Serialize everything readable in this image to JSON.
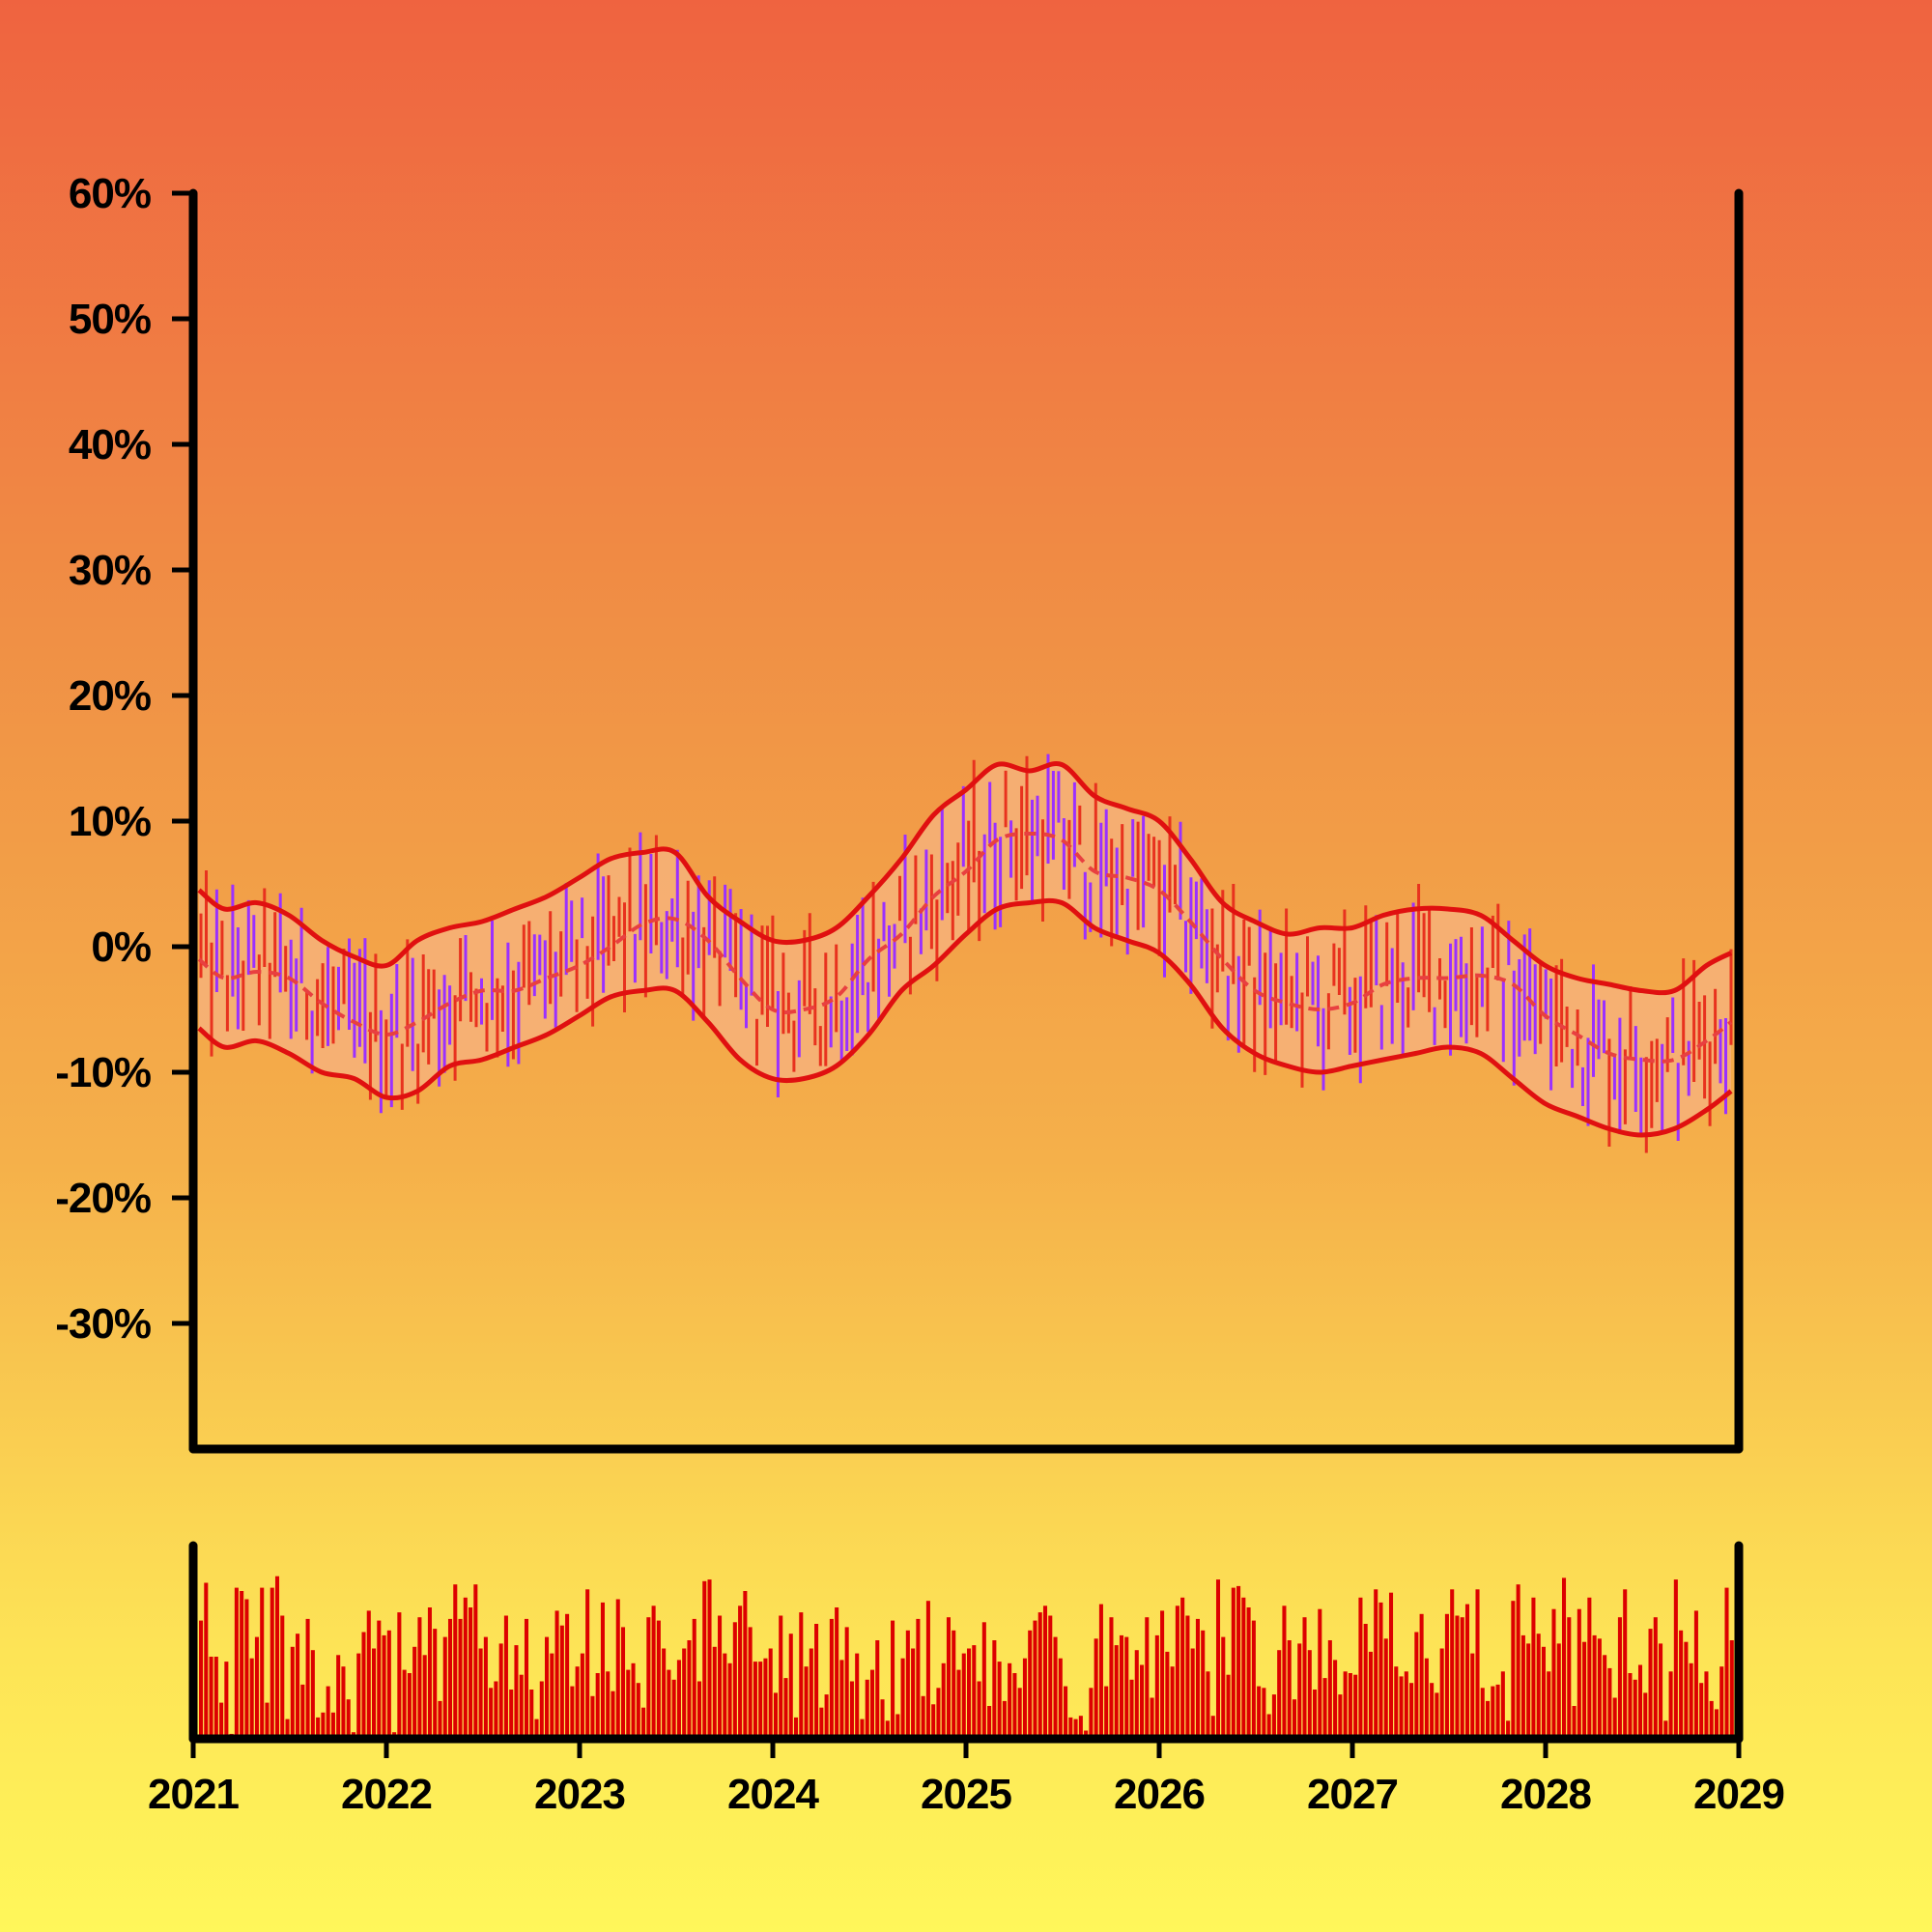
{
  "chart_data": {
    "type": "ohlc",
    "title": "",
    "xlabel": "",
    "ylabel": "",
    "x_range": [
      "2021-01-01",
      "2029-01-01"
    ],
    "x_ticks": [
      "2021",
      "2022",
      "2023",
      "2024",
      "2025",
      "2026",
      "2027",
      "2028",
      "2029"
    ],
    "ylim": [
      -40,
      60
    ],
    "y_ticks": [
      "60%",
      "50%",
      "40%",
      "30%",
      "20%",
      "10%",
      "0%",
      "-10%",
      "-20%",
      "-30%"
    ],
    "y_tick_values": [
      60,
      50,
      40,
      30,
      20,
      10,
      0,
      -10,
      -20,
      -30
    ],
    "grid": false,
    "colors": {
      "up": "#e8321e",
      "down": "#9b30ff",
      "band_line": "#e01010",
      "band_fill": "#f6b27a",
      "middle_line": "#e84040",
      "volume": "#dd0000",
      "axis": "#000000"
    },
    "bands": {
      "description": "moving average with upper/lower envelope",
      "dates": [
        "2021-01",
        "2021-03",
        "2021-05",
        "2021-07",
        "2021-09",
        "2021-11",
        "2022-01",
        "2022-03",
        "2022-05",
        "2022-07",
        "2022-09",
        "2022-11",
        "2023-01",
        "2023-03",
        "2023-05",
        "2023-07",
        "2023-09",
        "2023-11",
        "2024-01",
        "2024-03",
        "2024-05",
        "2024-07",
        "2024-09",
        "2024-11",
        "2025-01",
        "2025-03",
        "2025-05",
        "2025-07",
        "2025-09",
        "2025-11",
        "2026-01",
        "2026-03",
        "2026-05",
        "2026-07",
        "2026-09",
        "2026-11",
        "2027-01",
        "2027-03",
        "2027-05",
        "2027-07",
        "2027-09",
        "2027-11",
        "2028-01",
        "2028-03",
        "2028-05",
        "2028-07",
        "2028-09",
        "2028-11",
        "2029-01"
      ],
      "middle": [
        -1.0,
        -2.5,
        -2.0,
        -2.5,
        -4.5,
        -6.0,
        -7.0,
        -6.0,
        -4.5,
        -3.5,
        -3.5,
        -2.5,
        -1.5,
        0,
        1.8,
        2.2,
        0.5,
        -2.5,
        -5.0,
        -5.0,
        -4.0,
        -1.0,
        1.0,
        4.0,
        6.0,
        8.5,
        9.0,
        8.5,
        6.0,
        5.5,
        4.5,
        2.0,
        -1.0,
        -3.5,
        -4.5,
        -5.0,
        -4.5,
        -3.0,
        -2.5,
        -2.5,
        -2.3,
        -3.0,
        -5.5,
        -7.0,
        -8.5,
        -9.0,
        -9.0,
        -7.5,
        -6.0
      ],
      "upper": [
        4.5,
        3.0,
        3.5,
        2.5,
        0.5,
        -0.8,
        -1.5,
        0.5,
        1.5,
        2.0,
        3.0,
        4.0,
        5.5,
        7.0,
        7.5,
        7.5,
        4.0,
        2.0,
        0.5,
        0.5,
        1.5,
        4.0,
        7.0,
        10.5,
        12.5,
        14.5,
        14.0,
        14.5,
        12.0,
        11.0,
        10.0,
        7.0,
        3.5,
        2.0,
        1.0,
        1.5,
        1.5,
        2.5,
        3.0,
        3.0,
        2.5,
        0.5,
        -1.5,
        -2.5,
        -3.0,
        -3.5,
        -3.5,
        -1.5,
        -0.5
      ],
      "lower": [
        -6.5,
        -8.0,
        -7.5,
        -8.5,
        -10.0,
        -10.5,
        -12.0,
        -11.5,
        -9.5,
        -9.0,
        -8.0,
        -7.0,
        -5.5,
        -4.0,
        -3.5,
        -3.5,
        -6.0,
        -9.0,
        -10.5,
        -10.5,
        -9.5,
        -7.0,
        -3.5,
        -1.5,
        1.0,
        3.0,
        3.5,
        3.5,
        1.5,
        0.5,
        -0.5,
        -3.0,
        -6.5,
        -8.5,
        -9.5,
        -10.0,
        -9.5,
        -9.0,
        -8.5,
        -8.0,
        -8.5,
        -10.5,
        -12.5,
        -13.5,
        -14.5,
        -15.0,
        -14.5,
        -13.0,
        -11.5
      ]
    },
    "ohlc_note": "approximately 290 weekly OHLC bars (candlestick wicks) fluctuating within the band, colored up/down",
    "volume": {
      "note": "volume bars in lower panel, one per period, relative heights 0-1",
      "values": [
        0.72,
        0.95,
        0.5,
        0.5,
        0.22,
        0.47,
        0.03,
        0.92,
        0.9,
        0.85,
        0.49,
        0.62,
        0.92,
        0.22,
        0.92,
        0.99,
        0.75,
        0.12,
        0.56,
        0.64,
        0.33,
        0.73,
        0.54,
        0.13,
        0.16,
        0.32,
        0.16,
        0.51,
        0.44,
        0.24,
        0.04,
        0.52,
        0.65,
        0.78,
        0.55,
        0.72,
        0.63,
        0.66,
        0.04,
        0.77,
        0.42,
        0.4,
        0.56,
        0.74,
        0.51,
        0.8,
        0.67,
        0.23,
        0.62,
        0.73,
        0.94,
        0.73,
        0.86,
        0.8,
        0.94,
        0.55,
        0.62,
        0.31,
        0.35,
        0.58,
        0.75,
        0.3,
        0.57,
        0.39,
        0.73,
        0.3,
        0.12,
        0.35,
        0.62,
        0.52,
        0.78,
        0.69,
        0.76,
        0.32,
        0.44,
        0.52,
        0.91,
        0.26,
        0.4,
        0.83,
        0.41,
        0.29,
        0.85,
        0.68,
        0.42,
        0.46,
        0.34,
        0.19,
        0.74,
        0.81,
        0.72,
        0.55,
        0.42,
        0.36,
        0.48,
        0.55,
        0.6,
        0.73,
        0.35,
        0.96,
        0.97,
        0.56,
        0.75,
        0.52,
        0.46,
        0.71,
        0.81,
        0.9,
        0.68,
        0.47,
        0.47,
        0.49,
        0.55,
        0.28,
        0.75,
        0.37,
        0.64,
        0.13,
        0.77,
        0.44,
        0.55,
        0.7,
        0.19,
        0.27,
        0.73,
        0.8,
        0.48,
        0.68,
        0.35,
        0.52,
        0.12,
        0.36,
        0.42,
        0.6,
        0.24,
        0.11,
        0.72,
        0.15,
        0.49,
        0.66,
        0.55,
        0.73,
        0.26,
        0.84,
        0.21,
        0.31,
        0.46,
        0.74,
        0.66,
        0.42,
        0.52,
        0.55,
        0.57,
        0.35,
        0.71,
        0.2,
        0.6,
        0.47,
        0.23,
        0.46,
        0.4,
        0.31,
        0.49,
        0.66,
        0.72,
        0.77,
        0.81,
        0.75,
        0.62,
        0.49,
        0.32,
        0.13,
        0.12,
        0.14,
        0.05,
        0.31,
        0.61,
        0.82,
        0.32,
        0.74,
        0.57,
        0.63,
        0.62,
        0.36,
        0.54,
        0.45,
        0.74,
        0.25,
        0.63,
        0.78,
        0.53,
        0.44,
        0.81,
        0.86,
        0.75,
        0.55,
        0.73,
        0.66,
        0.41,
        0.14,
        0.97,
        0.62,
        0.39,
        0.92,
        0.93,
        0.86,
        0.8,
        0.72,
        0.32,
        0.31,
        0.15,
        0.27,
        0.54,
        0.81,
        0.6,
        0.24,
        0.58,
        0.74,
        0.54,
        0.3,
        0.79,
        0.37,
        0.6,
        0.48,
        0.27,
        0.41,
        0.4,
        0.39,
        0.86,
        0.7,
        0.53,
        0.91,
        0.83,
        0.61,
        0.89,
        0.44,
        0.38,
        0.41,
        0.34,
        0.65,
        0.76,
        0.49,
        0.34,
        0.28,
        0.55,
        0.76,
        0.91,
        0.75,
        0.74,
        0.82,
        0.52,
        0.91,
        0.31,
        0.23,
        0.32,
        0.33,
        0.41,
        0.11,
        0.84,
        0.94,
        0.63,
        0.58,
        0.86,
        0.64,
        0.56,
        0.41,
        0.79,
        0.58,
        0.98,
        0.74,
        0.2,
        0.79,
        0.59,
        0.86,
        0.63,
        0.61,
        0.51,
        0.43,
        0.25,
        0.74,
        0.91,
        0.4,
        0.36,
        0.45,
        0.28,
        0.67,
        0.74,
        0.58,
        0.11,
        0.41,
        0.97,
        0.66,
        0.59,
        0.46,
        0.78,
        0.34,
        0.41,
        0.23,
        0.18,
        0.44,
        0.92,
        0.6
      ]
    }
  }
}
